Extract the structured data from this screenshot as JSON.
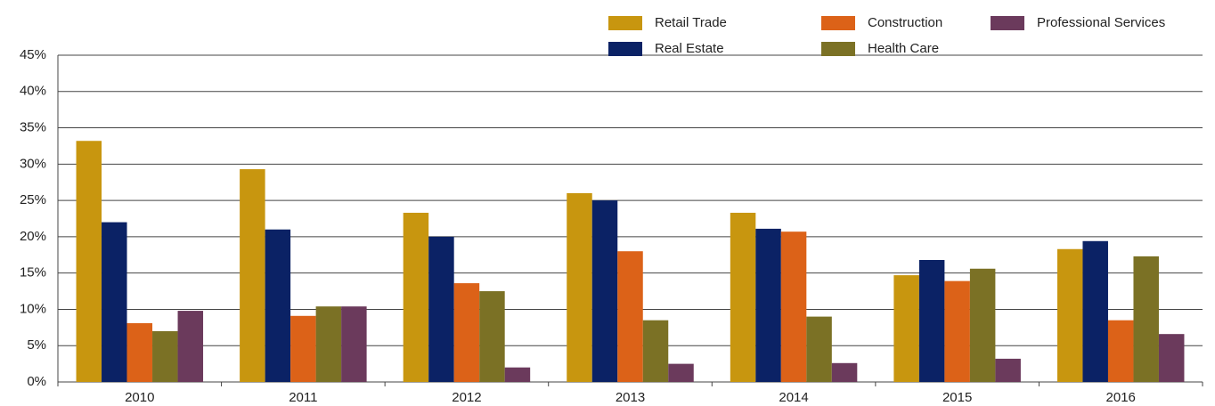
{
  "chart_data": {
    "type": "bar",
    "categories": [
      "2010",
      "2011",
      "2012",
      "2013",
      "2014",
      "2015",
      "2016"
    ],
    "series": [
      {
        "name": "Retail Trade",
        "color": "#c8960f",
        "values": [
          33.2,
          29.3,
          23.3,
          26.0,
          23.3,
          14.7,
          18.3
        ]
      },
      {
        "name": "Real Estate",
        "color": "#0b2265",
        "values": [
          22.0,
          21.0,
          20.0,
          25.0,
          21.1,
          16.8,
          19.4
        ]
      },
      {
        "name": "Construction",
        "color": "#dc6218",
        "values": [
          8.1,
          9.1,
          13.6,
          18.0,
          20.7,
          13.9,
          8.5
        ]
      },
      {
        "name": "Health Care",
        "color": "#7b7125",
        "values": [
          7.0,
          10.4,
          12.5,
          8.5,
          9.0,
          15.6,
          17.3
        ]
      },
      {
        "name": "Professional Services",
        "color": "#6b3a5c",
        "values": [
          9.8,
          10.4,
          2.0,
          2.5,
          2.6,
          3.2,
          6.6
        ]
      }
    ],
    "ylim": [
      0,
      45
    ],
    "yticks": [
      {
        "value": 0,
        "label": "0%"
      },
      {
        "value": 5,
        "label": "5%"
      },
      {
        "value": 10,
        "label": "10%"
      },
      {
        "value": 15,
        "label": "15%"
      },
      {
        "value": 20,
        "label": "20%"
      },
      {
        "value": 25,
        "label": "25%"
      },
      {
        "value": 30,
        "label": "30%"
      },
      {
        "value": 35,
        "label": "35%"
      },
      {
        "value": 40,
        "label": "40%"
      },
      {
        "value": 45,
        "label": "45%"
      }
    ],
    "grid": true,
    "legend": "top-right"
  }
}
